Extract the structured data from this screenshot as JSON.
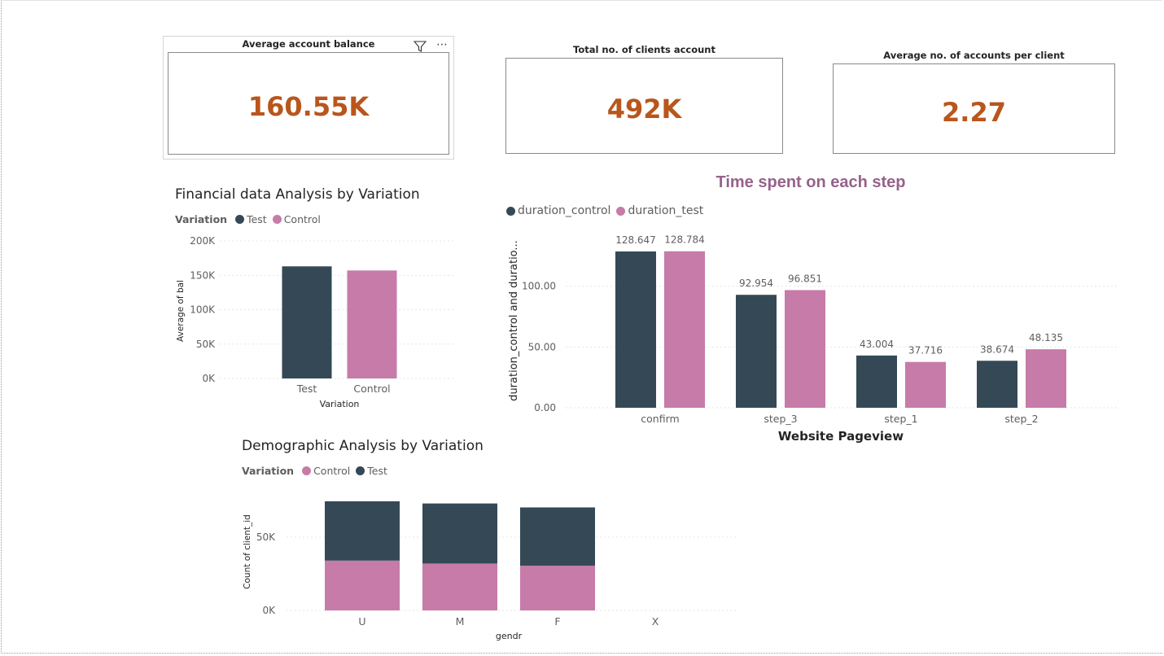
{
  "colors": {
    "test": "#344955",
    "control": "#c67ba8",
    "kpi": "#b8561c",
    "step_title": "#96628a"
  },
  "cards": [
    {
      "title": "Average account balance",
      "value": "160.55K"
    },
    {
      "title": "Total no. of clients account",
      "value": "492K"
    },
    {
      "title": "Average no. of accounts per client",
      "value": "2.27"
    }
  ],
  "card_icons": {
    "filter": "filter-icon",
    "more": "more-options-icon"
  },
  "financial": {
    "title": "Financial data Analysis by Variation",
    "legend_title": "Variation",
    "legend": [
      "Test",
      "Control"
    ]
  },
  "steps": {
    "title": "Time spent on each step",
    "legend": [
      "duration_control",
      "duration_test"
    ]
  },
  "demographic": {
    "title": "Demographic Analysis by Variation",
    "legend_title": "Variation",
    "legend": [
      "Control",
      "Test"
    ]
  },
  "chart_data": [
    {
      "type": "bar",
      "title": "Financial data Analysis by Variation",
      "categories": [
        "Test",
        "Control"
      ],
      "series": [
        {
          "name": "Average of bal",
          "values": [
            163000,
            157000
          ]
        }
      ],
      "xlabel": "Variation",
      "ylabel": "Average of bal",
      "ylim": [
        0,
        200000
      ],
      "yticks": [
        "0K",
        "50K",
        "100K",
        "150K",
        "200K"
      ],
      "grid": true
    },
    {
      "type": "bar",
      "title": "Time spent on each step",
      "categories": [
        "confirm",
        "step_3",
        "step_1",
        "step_2"
      ],
      "series": [
        {
          "name": "duration_control",
          "values": [
            128.647,
            92.954,
            43.004,
            38.674
          ]
        },
        {
          "name": "duration_test",
          "values": [
            128.784,
            96.851,
            37.716,
            48.135
          ]
        }
      ],
      "xlabel": "Website Pageview",
      "ylabel": "duration_control and duratio...",
      "ylim": [
        0,
        140
      ],
      "yticks": [
        "0.00",
        "50.00",
        "100.00"
      ],
      "grid": true
    },
    {
      "type": "bar",
      "stacked": true,
      "title": "Demographic Analysis by Variation",
      "categories": [
        "U",
        "M",
        "F",
        "X"
      ],
      "series": [
        {
          "name": "Control",
          "values": [
            34000,
            32000,
            30500,
            0
          ]
        },
        {
          "name": "Test",
          "values": [
            40500,
            41000,
            39800,
            0
          ]
        }
      ],
      "xlabel": "gendr",
      "ylabel": "Count of client_id",
      "ylim": [
        0,
        80000
      ],
      "yticks": [
        "0K",
        "50K"
      ],
      "grid": true
    }
  ]
}
